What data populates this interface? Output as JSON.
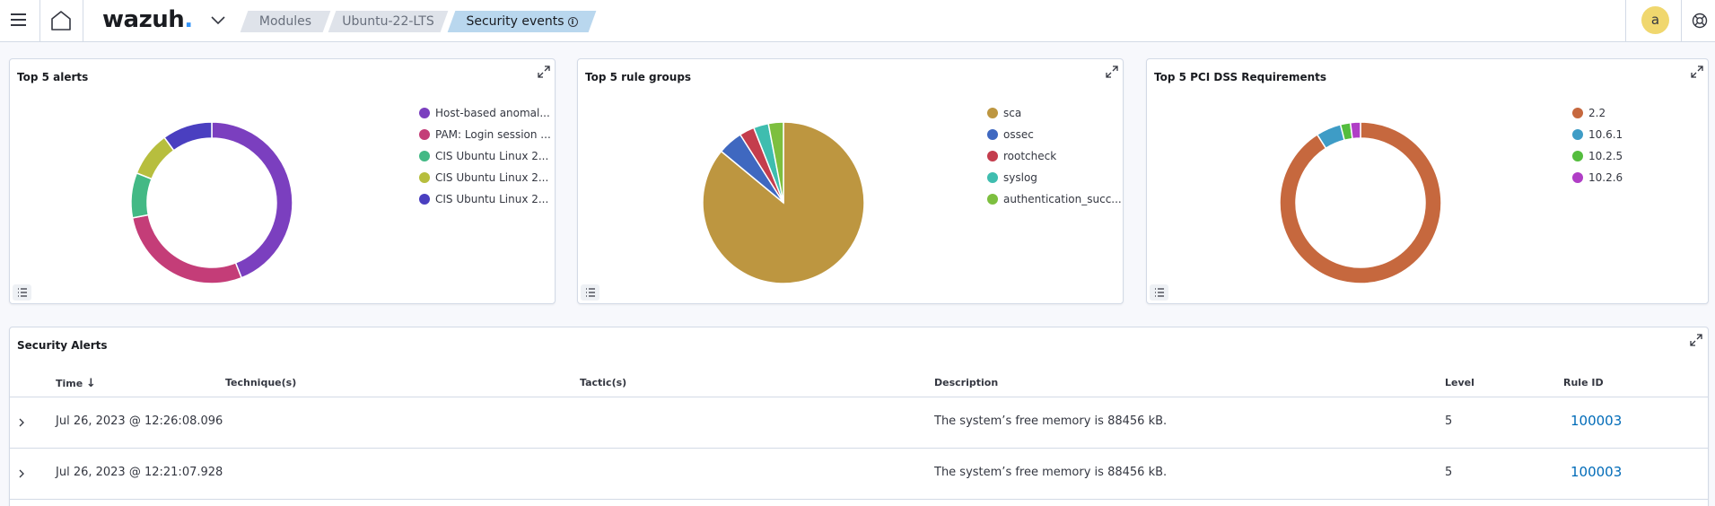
{
  "header": {
    "logo_text": "wazuh",
    "logo_dot": ".",
    "breadcrumbs": [
      "Modules",
      "Ubuntu-22-LTS",
      "Security events"
    ],
    "avatar_letter": "a",
    "info_glyph": "i"
  },
  "panels": {
    "alerts": {
      "title": "Top 5 alerts",
      "legend": [
        {
          "label": "Host-based anomal...",
          "color": "#7b3fbf"
        },
        {
          "label": "PAM: Login session ...",
          "color": "#c43d78"
        },
        {
          "label": "CIS Ubuntu Linux 2...",
          "color": "#43b985"
        },
        {
          "label": "CIS Ubuntu Linux 2...",
          "color": "#b7be3e"
        },
        {
          "label": "CIS Ubuntu Linux 2...",
          "color": "#4a3fc0"
        }
      ]
    },
    "rule_groups": {
      "title": "Top 5 rule groups",
      "legend": [
        {
          "label": "sca",
          "color": "#bd9640"
        },
        {
          "label": "ossec",
          "color": "#3f68c0"
        },
        {
          "label": "rootcheck",
          "color": "#c43d4d"
        },
        {
          "label": "syslog",
          "color": "#3fbdaf"
        },
        {
          "label": "authentication_succ...",
          "color": "#7dbf3f"
        }
      ]
    },
    "pci": {
      "title": "Top 5 PCI DSS Requirements",
      "legend": [
        {
          "label": "2.2",
          "color": "#c6683e"
        },
        {
          "label": "10.6.1",
          "color": "#3e9cc6"
        },
        {
          "label": "10.2.5",
          "color": "#54bd3e"
        },
        {
          "label": "10.2.6",
          "color": "#b03ec6"
        }
      ]
    }
  },
  "chart_data": [
    {
      "type": "pie",
      "title": "Top 5 alerts",
      "donut": true,
      "labels": [
        "Host-based anomal...",
        "PAM: Login session ...",
        "CIS Ubuntu Linux 2...",
        "CIS Ubuntu Linux 2...",
        "CIS Ubuntu Linux 2..."
      ],
      "values": [
        44,
        28,
        9,
        9,
        10
      ]
    },
    {
      "type": "pie",
      "title": "Top 5 rule groups",
      "donut": false,
      "labels": [
        "sca",
        "ossec",
        "rootcheck",
        "syslog",
        "authentication_succ..."
      ],
      "values": [
        86,
        5,
        3,
        3,
        3
      ]
    },
    {
      "type": "pie",
      "title": "Top 5 PCI DSS Requirements",
      "donut": true,
      "labels": [
        "2.2",
        "10.6.1",
        "10.2.5",
        "10.2.6"
      ],
      "values": [
        91,
        5,
        2,
        2
      ]
    }
  ],
  "security_alerts": {
    "title": "Security Alerts",
    "columns": [
      "Time",
      "Technique(s)",
      "Tactic(s)",
      "Description",
      "Level",
      "Rule ID"
    ],
    "sort_arrow": "↓",
    "rows": [
      {
        "time": "Jul 26, 2023 @ 12:26:08.096",
        "techniques": "",
        "tactics": "",
        "description": "The system’s free memory is 88456 kB.",
        "level": "5",
        "rule_id": "100003"
      },
      {
        "time": "Jul 26, 2023 @ 12:21:07.928",
        "techniques": "",
        "tactics": "",
        "description": "The system’s free memory is 88456 kB.",
        "level": "5",
        "rule_id": "100003"
      }
    ]
  }
}
